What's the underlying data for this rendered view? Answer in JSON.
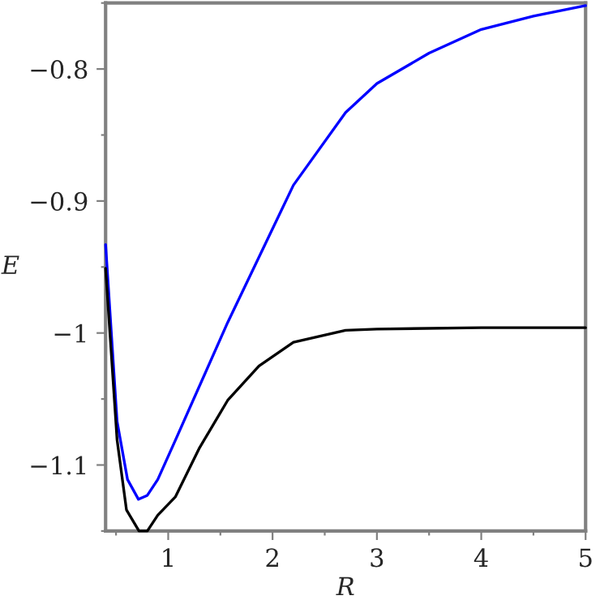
{
  "chart_data": {
    "type": "line",
    "xlabel": "R",
    "ylabel": "E",
    "xlim": [
      0.4,
      5
    ],
    "ylim": [
      -1.15,
      -0.75
    ],
    "xticks": [
      {
        "value": 0.5,
        "label": null
      },
      1,
      {
        "value": 1.5,
        "label": null
      },
      2,
      {
        "value": 2.5,
        "label": null
      },
      3,
      {
        "value": 3.5,
        "label": null
      },
      4,
      {
        "value": 4.5,
        "label": null
      },
      5
    ],
    "yticks": [
      {
        "value": -1.15,
        "label": null
      },
      {
        "value": -1.1,
        "label": "−1.1"
      },
      {
        "value": -1.05,
        "label": null
      },
      {
        "value": -1,
        "label": "−1"
      },
      {
        "value": -0.95,
        "label": null
      },
      {
        "value": -0.9,
        "label": "−0.9"
      },
      {
        "value": -0.85,
        "label": null
      },
      {
        "value": -0.8,
        "label": "−0.8"
      },
      {
        "value": -0.75,
        "label": null
      }
    ],
    "grid": false,
    "legend": false,
    "series": [
      {
        "color": "#0000ff",
        "x": [
          0.4,
          0.51,
          0.61,
          0.715,
          0.8,
          0.9,
          1.07,
          1.57,
          2.2,
          2.7,
          3.0,
          3.5,
          4.0,
          4.5,
          5.0
        ],
        "values": [
          -0.933,
          -1.067,
          -1.111,
          -1.126,
          -1.123,
          -1.111,
          -1.081,
          -0.992,
          -0.888,
          -0.833,
          -0.811,
          -0.788,
          -0.77,
          -0.76,
          -0.752
        ]
      },
      {
        "color": "#000000",
        "x": [
          0.4,
          0.51,
          0.6,
          0.72,
          0.8,
          0.9,
          1.07,
          1.3,
          1.57,
          1.87,
          2.2,
          2.7,
          3.0,
          4.0,
          5.0
        ],
        "values": [
          -0.951,
          -1.081,
          -1.134,
          -1.15,
          -1.15,
          -1.138,
          -1.124,
          -1.087,
          -1.051,
          -1.025,
          -1.007,
          -0.998,
          -0.997,
          -0.996,
          -0.996
        ]
      }
    ]
  }
}
